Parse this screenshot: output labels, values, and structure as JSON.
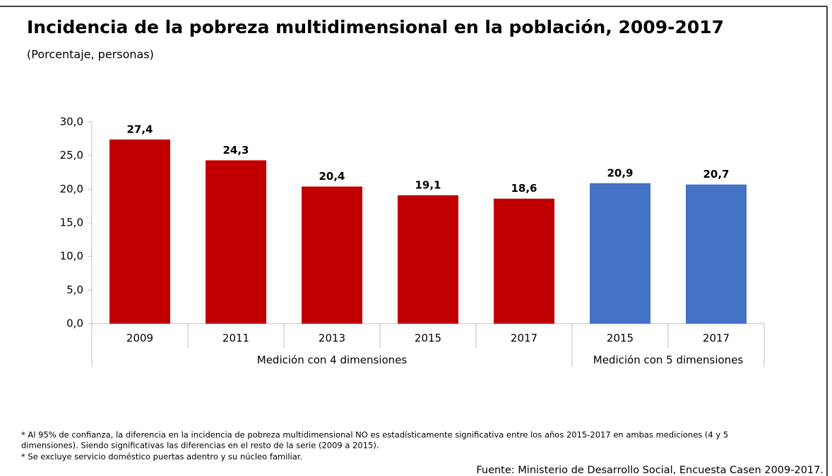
{
  "chart_data": {
    "type": "bar",
    "title": "Incidencia de la pobreza multidimensional en la población, 2009-2017",
    "subtitle": "(Porcentaje, personas)",
    "groups": [
      {
        "name": "Medición con 4 dimensiones",
        "color": "#c00000",
        "categories": [
          "2009",
          "2011",
          "2013",
          "2015",
          "2017"
        ],
        "values": [
          27.4,
          24.3,
          20.4,
          19.1,
          18.6
        ],
        "value_labels": [
          "27,4",
          "24,3",
          "20,4",
          "19,1",
          "18,6"
        ]
      },
      {
        "name": "Medición con 5 dimensiones",
        "color": "#4472c4",
        "categories": [
          "2015",
          "2017"
        ],
        "values": [
          20.9,
          20.7
        ],
        "value_labels": [
          "20,9",
          "20,7"
        ]
      }
    ],
    "ylim": [
      0,
      30
    ],
    "yticks": [
      {
        "value": 0,
        "label": "0,0"
      },
      {
        "value": 5,
        "label": "5,0"
      },
      {
        "value": 10,
        "label": "10,0"
      },
      {
        "value": 15,
        "label": "15,0"
      },
      {
        "value": 20,
        "label": "20,0"
      },
      {
        "value": 25,
        "label": "25,0"
      },
      {
        "value": 30,
        "label": "30,0"
      }
    ],
    "grid": false,
    "footnotes": [
      "* Al 95% de confianza, la diferencia en la incidencia de pobreza multidimensional NO es estadísticamente significativa entre los años 2015-2017 en ambas mediciones (4 y 5",
      "dimensiones). Siendo significativas las diferencias en el resto de la serie (2009 a 2015).",
      "* Se excluye servicio doméstico puertas adentro y su núcleo familiar."
    ],
    "source": "Fuente: Ministerio de Desarrollo Social, Encuesta Casen 2009-2017."
  }
}
